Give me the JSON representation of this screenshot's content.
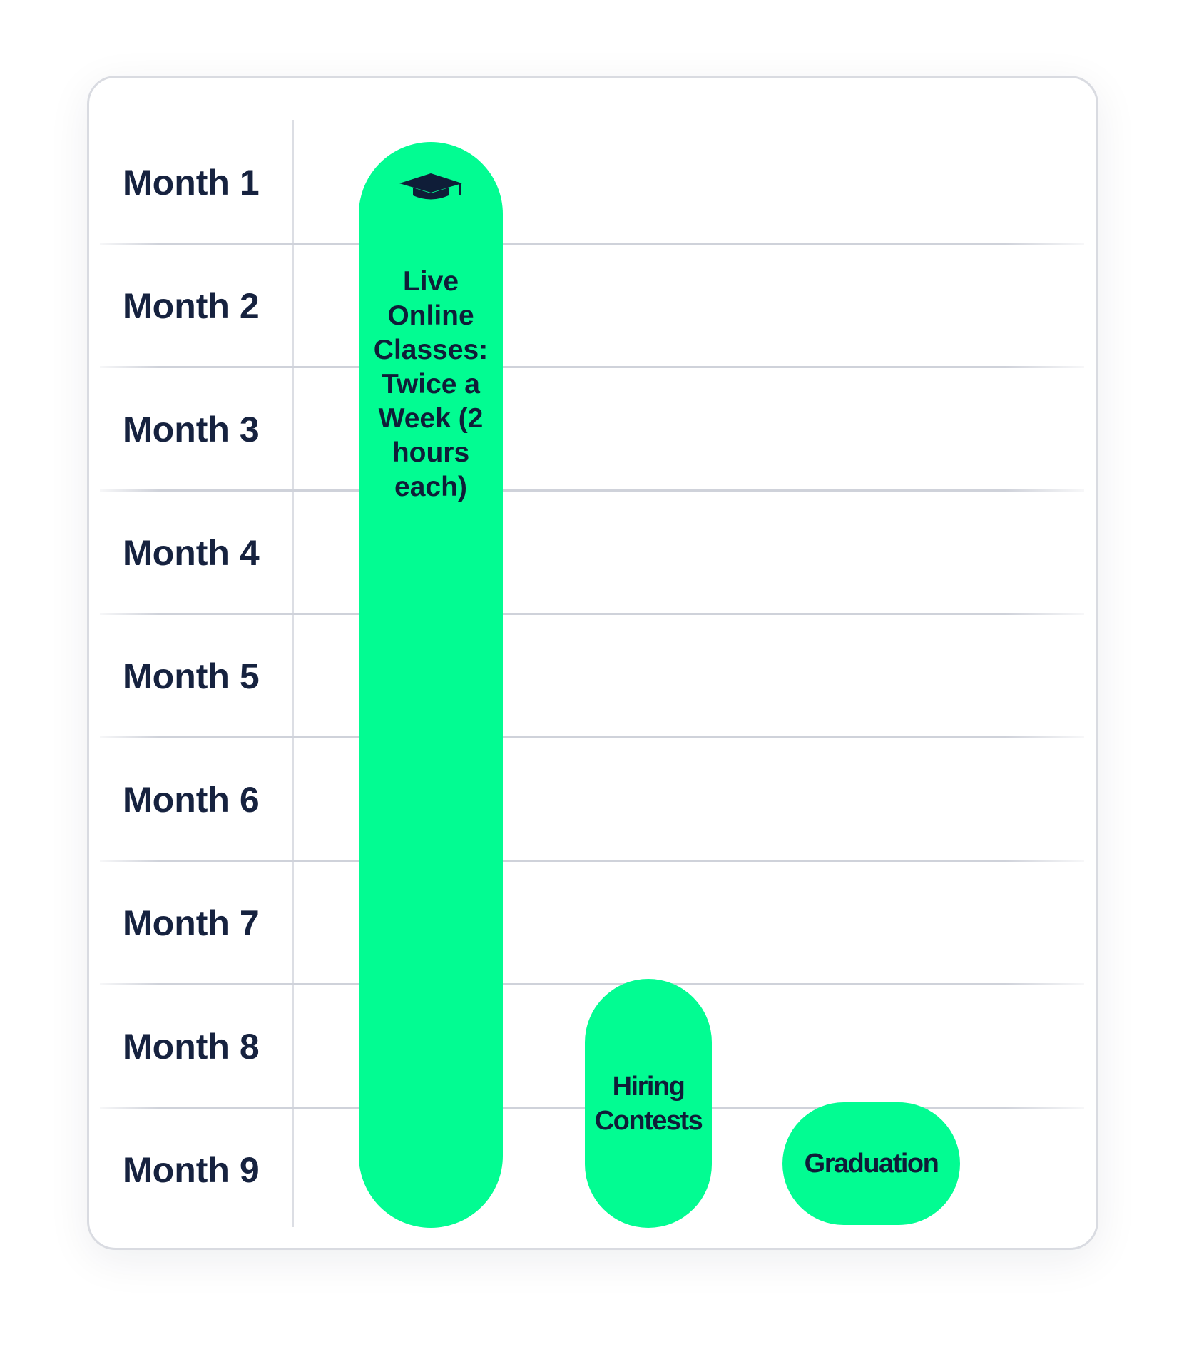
{
  "timeline": {
    "months": [
      "Month 1",
      "Month 2",
      "Month 3",
      "Month 4",
      "Month 5",
      "Month 6",
      "Month 7",
      "Month 8",
      "Month 9"
    ]
  },
  "activities": {
    "classes": {
      "label": "Live Online Classes: Twice a Week (2 hours each)",
      "icon": "graduation-cap-icon",
      "start_month": 1,
      "end_month": 9
    },
    "hiring": {
      "label": "Hiring Contests",
      "start_month": 8,
      "end_month": 9
    },
    "graduation": {
      "label": "Graduation",
      "start_month": 9,
      "end_month": 9
    }
  },
  "colors": {
    "accent": "#02fc92",
    "text": "#16223f",
    "grid": "#cfd2da"
  }
}
